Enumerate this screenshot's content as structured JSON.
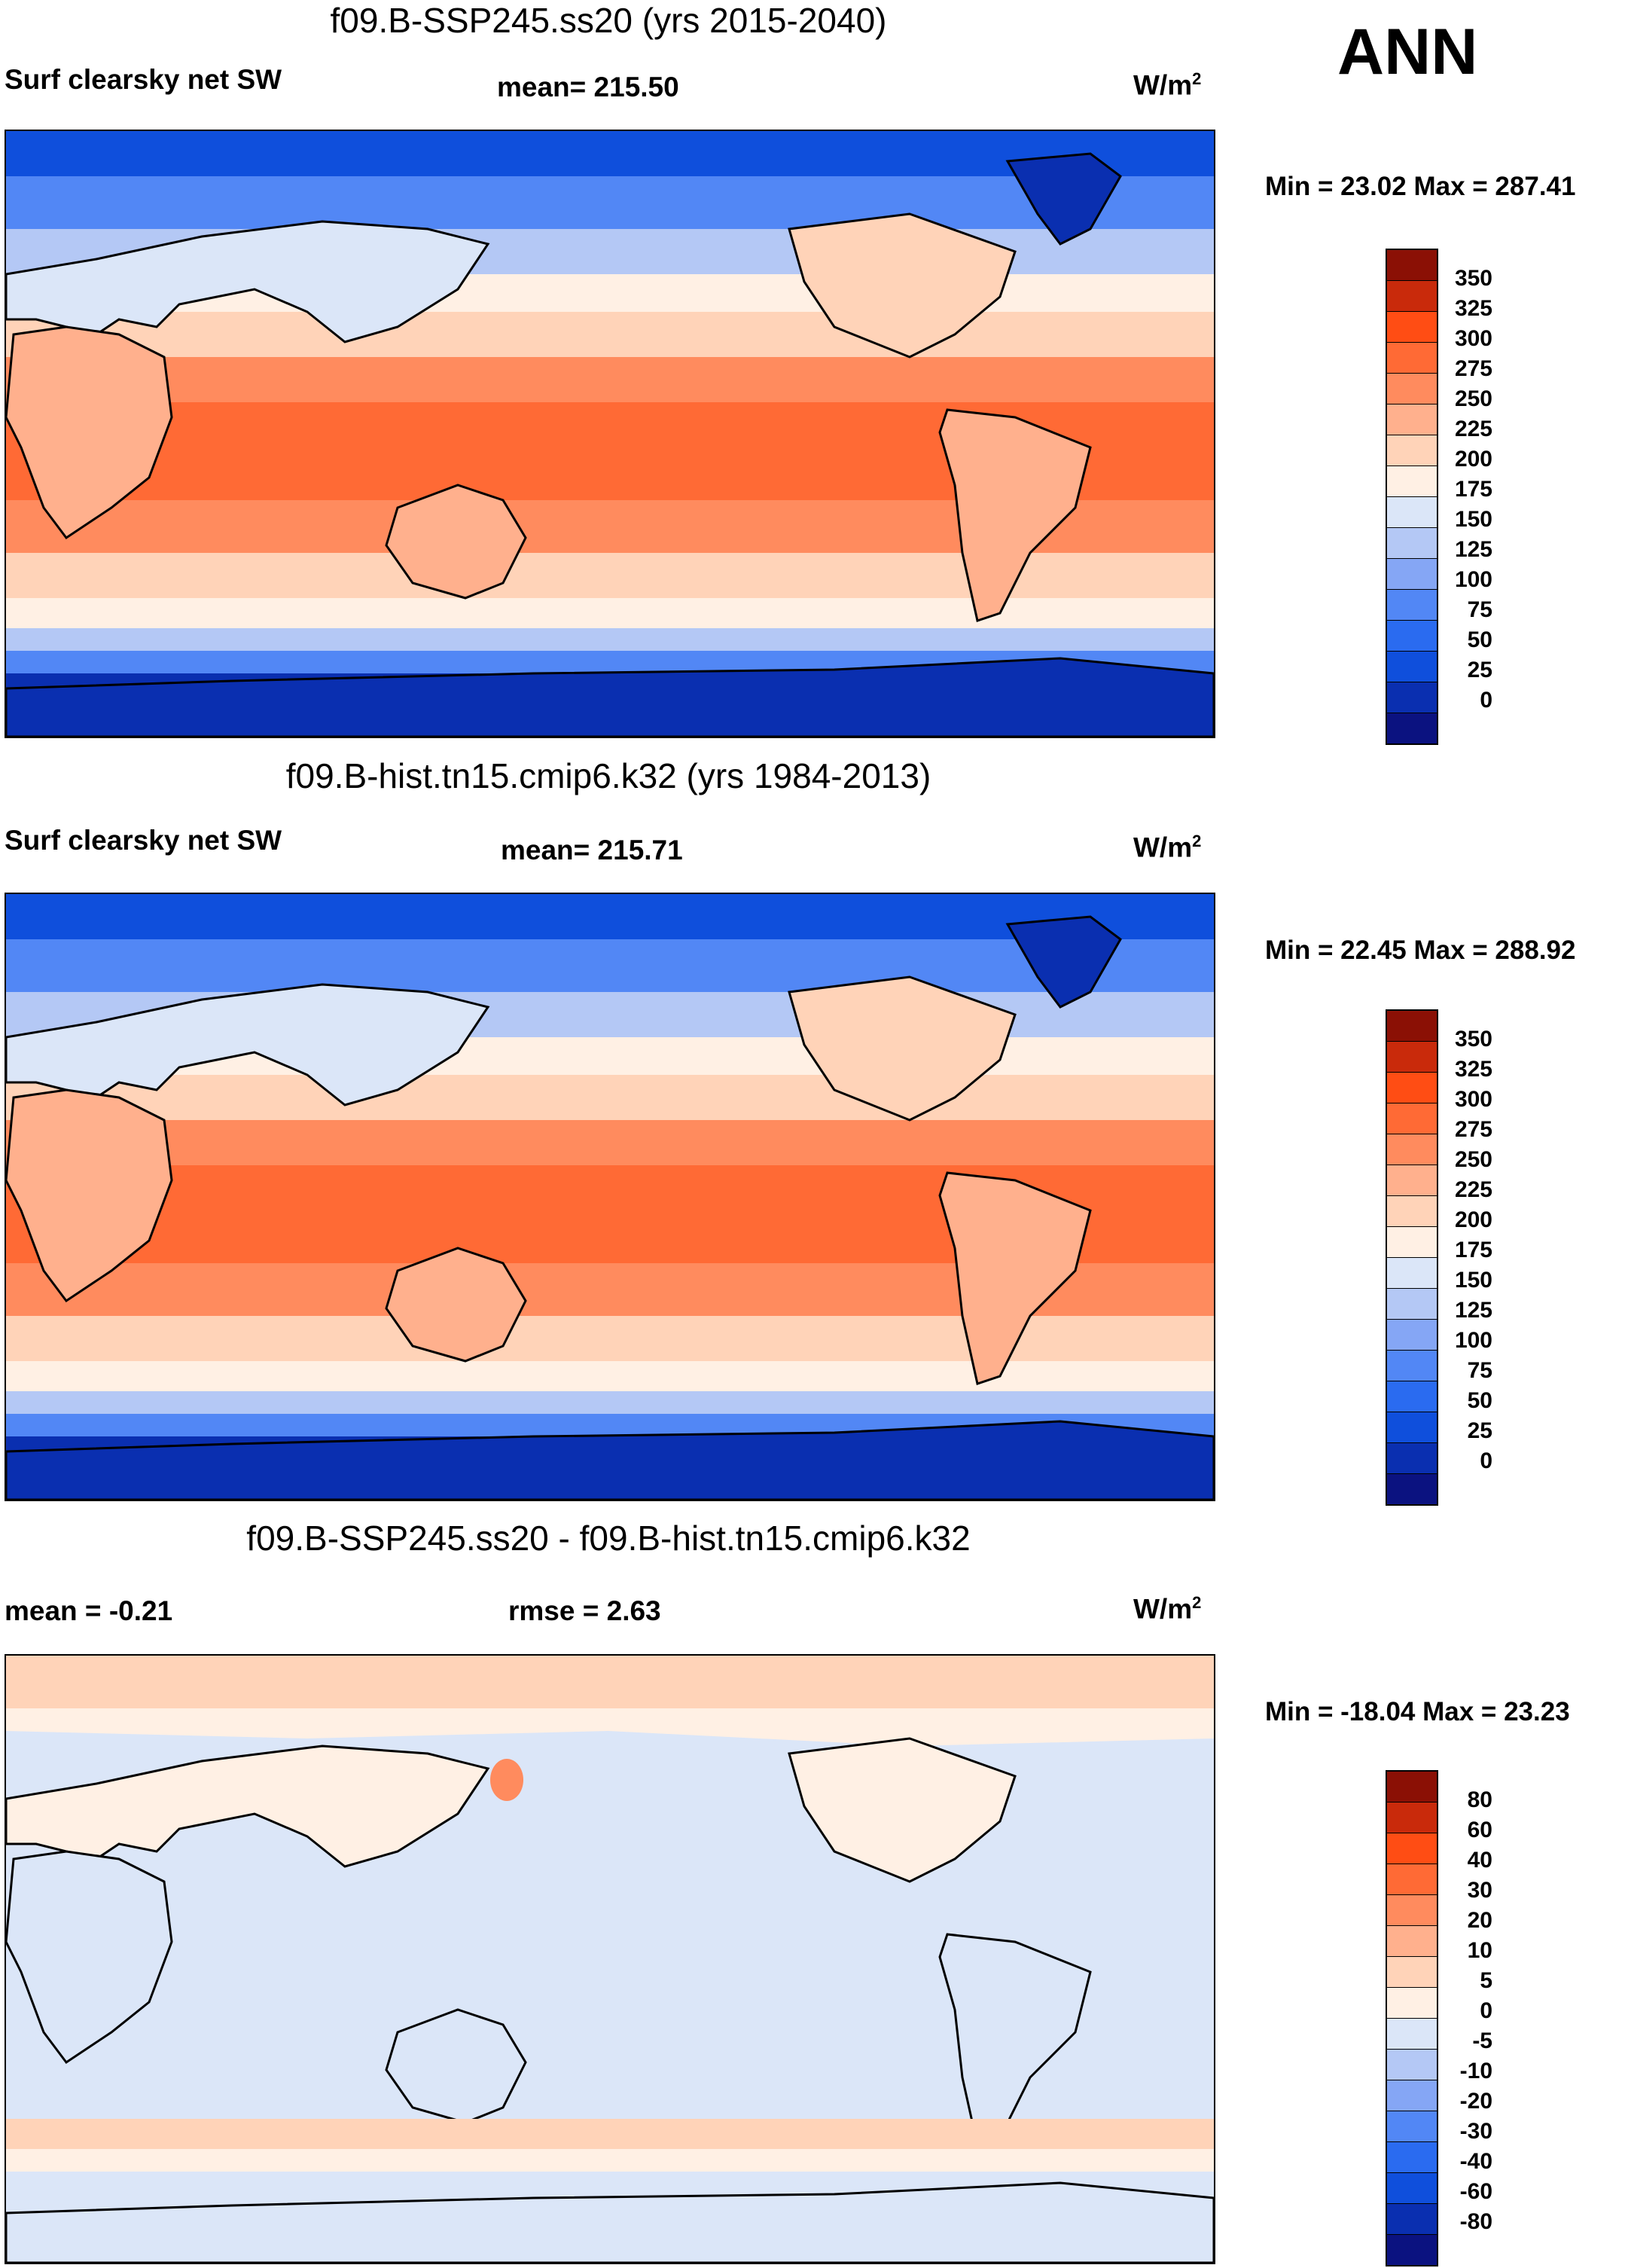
{
  "season": "ANN",
  "colors": {
    "abs_scale": [
      "#0b1280",
      "#0a2fb0",
      "#0f4fdc",
      "#2a6bf0",
      "#5287f5",
      "#85a6f5",
      "#b4c8f5",
      "#dbe6f8",
      "#fff0e4",
      "#ffd3b8",
      "#ffb08d",
      "#ff8b5e",
      "#ff6a35",
      "#ff4d14",
      "#c92a0b",
      "#8b1005"
    ],
    "diff_scale": [
      "#0b1280",
      "#0a2fb0",
      "#0f4fdc",
      "#2a6bf0",
      "#5287f5",
      "#85a6f5",
      "#b4c8f5",
      "#dbe6f8",
      "#fff0e4",
      "#ffd3b8",
      "#ffb08d",
      "#ff8b5e",
      "#ff6a35",
      "#ff4d14",
      "#c92a0b",
      "#8b1005"
    ]
  },
  "panels": [
    {
      "title": "f09.B-SSP245.ss20 (yrs 2015-2040)",
      "left_label": "Surf clearsky net SW",
      "center_label": "mean= 215.50",
      "units": "W/m",
      "units_sup": "2",
      "minmax": "Min =  23.02 Max = 287.41",
      "colorbar_labels": [
        "350",
        "325",
        "300",
        "275",
        "250",
        "225",
        "200",
        "175",
        "150",
        "125",
        "100",
        "75",
        "50",
        "25",
        "0"
      ]
    },
    {
      "title": "f09.B-hist.tn15.cmip6.k32 (yrs 1984-2013)",
      "left_label": "Surf clearsky net SW",
      "center_label": "mean= 215.71",
      "units": "W/m",
      "units_sup": "2",
      "minmax": "Min =  22.45 Max = 288.92",
      "colorbar_labels": [
        "350",
        "325",
        "300",
        "275",
        "250",
        "225",
        "200",
        "175",
        "150",
        "125",
        "100",
        "75",
        "50",
        "25",
        "0"
      ]
    },
    {
      "title": "f09.B-SSP245.ss20 - f09.B-hist.tn15.cmip6.k32",
      "left_label": "mean =  -0.21",
      "center_label": "rmse =   2.63",
      "units": "W/m",
      "units_sup": "2",
      "minmax": "Min = -18.04 Max =  23.23",
      "colorbar_labels": [
        "80",
        "60",
        "40",
        "30",
        "20",
        "10",
        "5",
        "0",
        "-5",
        "-10",
        "-20",
        "-30",
        "-40",
        "-60",
        "-80"
      ]
    }
  ]
}
